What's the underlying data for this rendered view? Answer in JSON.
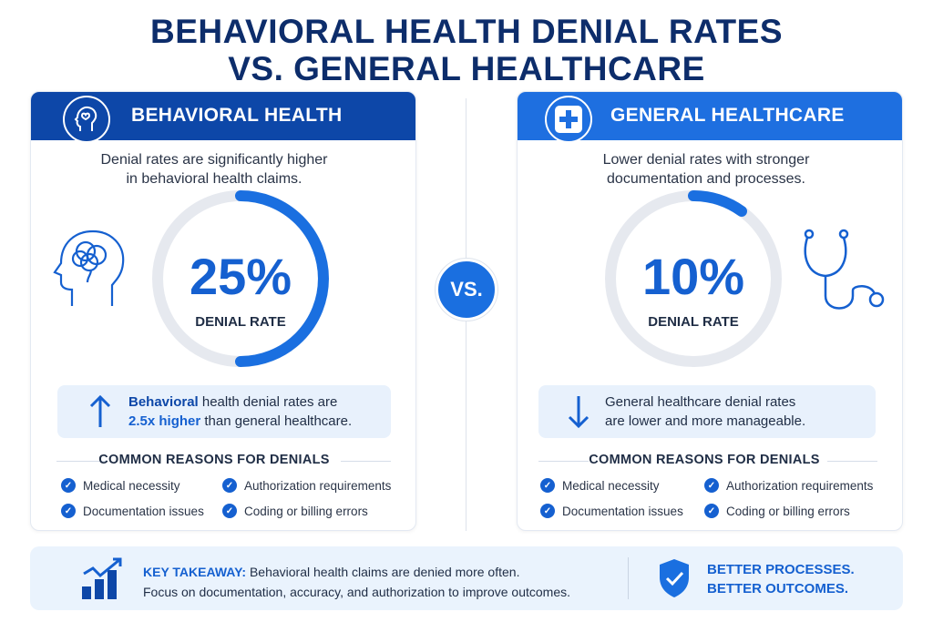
{
  "title": {
    "line1": "BEHAVIORAL HEALTH DENIAL RATES",
    "line2": "VS. GENERAL HEALTHCARE"
  },
  "vs_label": "VS.",
  "behavioral": {
    "header": "BEHAVIORAL HEALTH",
    "header_color": "#0d47a8",
    "description_line1": "Denial rates are significantly higher",
    "description_line2": "in behavioral health claims.",
    "rate_value": 25,
    "rate_text": "25%",
    "rate_label": "DENIAL RATE",
    "comparison_bold": "Behavioral",
    "comparison_rest": " health denial rates are",
    "comparison_highlight": "2.5x higher",
    "comparison_end": " than general healthcare.",
    "reasons_heading": "COMMON REASONS FOR DENIALS",
    "reasons": [
      "Medical necessity",
      "Authorization requirements",
      "Documentation issues",
      "Coding or billing errors"
    ]
  },
  "general": {
    "header": "GENERAL HEALTHCARE",
    "header_color": "#1e6fe0",
    "description_line1": "Lower denial rates with stronger",
    "description_line2": "documentation and processes.",
    "rate_value": 10,
    "rate_text": "10%",
    "rate_label": "DENIAL RATE",
    "comparison_line1": "General healthcare denial rates",
    "comparison_line2": "are lower and more manageable.",
    "reasons_heading": "COMMON REASONS FOR DENIALS",
    "reasons": [
      "Medical necessity",
      "Authorization requirements",
      "Documentation issues",
      "Coding or billing errors"
    ]
  },
  "takeaway": {
    "label": "KEY TAKEAWAY:",
    "line1": " Behavioral health claims are denied more often.",
    "line2": "Focus on documentation, accuracy, and authorization to improve outcomes.",
    "slogan1": "BETTER PROCESSES.",
    "slogan2": "BETTER OUTCOMES."
  }
}
